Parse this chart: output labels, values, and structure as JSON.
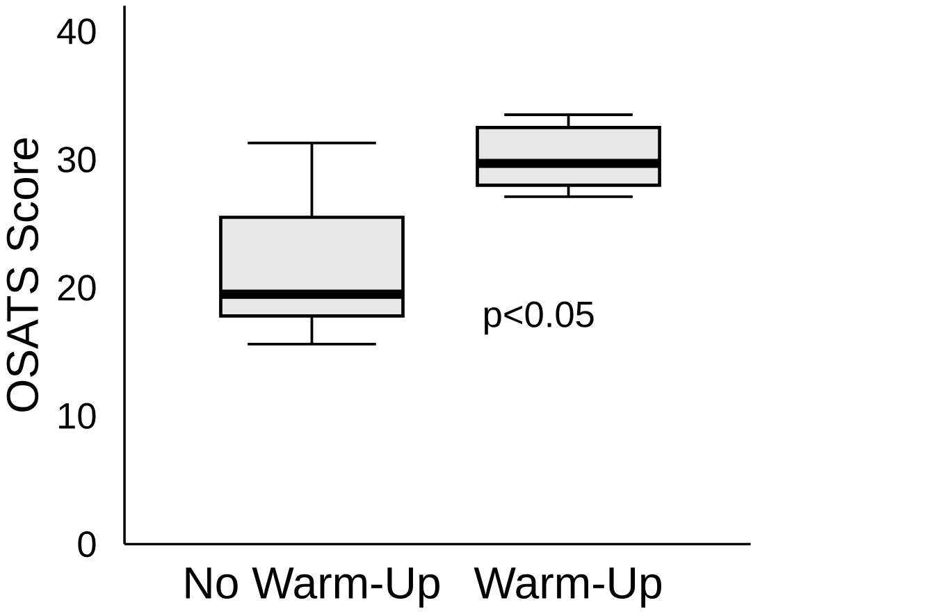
{
  "chart_data": {
    "type": "box",
    "ylabel": "OSATS Score",
    "categories": [
      "No Warm-Up",
      "Warm-Up"
    ],
    "color": "#e8e8e8",
    "boxes": [
      {
        "low": 15.6,
        "q1": 17.8,
        "median": 19.5,
        "q3": 25.5,
        "high": 31.3
      },
      {
        "low": 27.1,
        "q1": 28.0,
        "median": 29.7,
        "q3": 32.5,
        "high": 33.5
      }
    ],
    "ylim": [
      0,
      42
    ],
    "yticks": [
      0,
      10,
      20,
      30,
      40
    ],
    "annotations": [
      "p<0.05"
    ]
  }
}
